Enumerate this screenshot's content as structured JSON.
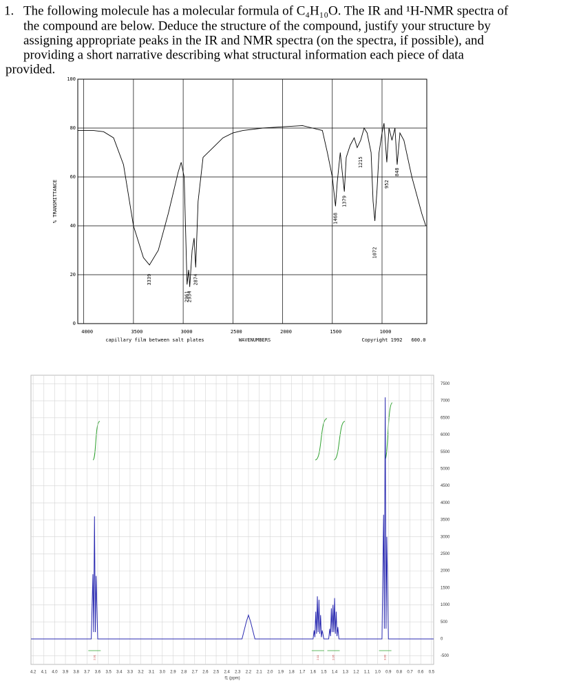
{
  "question": {
    "number": "1.",
    "lines": [
      "The following molecule has a molecular formula of C₄H₁₀O.  The IR and ¹H-NMR spectra of",
      "the compound are below.  Deduce the structure of the compound, justify your structure by",
      "assigning appropriate peaks in the IR and NMR spectra (on the spectra, if possible), and",
      "providing a short narrative describing what structural information each piece of data",
      "provided."
    ]
  },
  "chart_data": [
    {
      "type": "line",
      "y_label": "% TRANSMITTANCE",
      "x_label": "WAVENUMBERS",
      "note": "capillary film between salt plates",
      "copyright": "Copyright 1992",
      "end_label": "600.0",
      "color": "#000000",
      "grid": true,
      "xlim": [
        4060,
        550
      ],
      "ylim": [
        0,
        100
      ],
      "xticks": [
        4000,
        3500,
        3000,
        2500,
        2000,
        1500,
        1000
      ],
      "yticks": [
        0,
        20,
        40,
        60,
        80,
        100
      ],
      "x": [
        4060,
        3900,
        3800,
        3700,
        3600,
        3500,
        3400,
        3339,
        3250,
        3150,
        3050,
        3020,
        2990,
        2961,
        2945,
        2934,
        2910,
        2890,
        2874,
        2850,
        2800,
        2700,
        2600,
        2500,
        2400,
        2200,
        2000,
        1800,
        1700,
        1600,
        1550,
        1500,
        1468,
        1450,
        1420,
        1400,
        1379,
        1360,
        1320,
        1280,
        1250,
        1215,
        1180,
        1150,
        1110,
        1090,
        1072,
        1050,
        1030,
        1000,
        980,
        952,
        930,
        900,
        870,
        848,
        820,
        780,
        700,
        600,
        560
      ],
      "values": [
        79,
        79,
        78.5,
        76,
        65,
        40,
        27,
        24,
        30,
        45,
        62,
        66,
        60,
        16,
        22,
        15,
        30,
        35,
        23,
        50,
        68,
        72,
        76,
        78,
        79,
        80,
        80.5,
        81,
        80,
        79,
        70,
        60,
        48,
        58,
        70,
        62,
        54,
        68,
        73,
        76,
        72,
        75,
        80,
        78,
        70,
        50,
        42,
        55,
        70,
        78,
        82,
        66,
        80,
        75,
        80,
        65,
        78,
        75,
        60,
        45,
        40
      ],
      "annotations": [
        {
          "label": "3339",
          "x": 3339,
          "y": 18
        },
        {
          "label": "2961",
          "x": 2961,
          "y": 11
        },
        {
          "label": "2934",
          "x": 2934,
          "y": 11
        },
        {
          "label": "2874",
          "x": 2874,
          "y": 18
        },
        {
          "label": "1468",
          "x": 1468,
          "y": 43
        },
        {
          "label": "1379",
          "x": 1379,
          "y": 50
        },
        {
          "label": "1215",
          "x": 1215,
          "y": 66
        },
        {
          "label": "1072",
          "x": 1072,
          "y": 29
        },
        {
          "label": "952",
          "x": 952,
          "y": 57
        },
        {
          "label": "848",
          "x": 848,
          "y": 62
        }
      ]
    },
    {
      "type": "line",
      "x_label": "f1 (ppm)",
      "color": "#2a2ab0",
      "grid": true,
      "xlim": [
        4.22,
        0.48
      ],
      "ylim": [
        -750,
        7750
      ],
      "xticks": [
        4.2,
        4.1,
        {
          "value": 4,
          "label": "4.0"
        },
        3.9,
        3.8,
        3.7,
        3.6,
        3.5,
        3.4,
        3.3,
        3.2,
        3.1,
        {
          "value": 3,
          "label": "3.0"
        },
        2.9,
        2.8,
        2.7,
        2.6,
        2.5,
        2.4,
        2.3,
        2.2,
        2.1,
        {
          "value": 2,
          "label": "2.0"
        },
        1.9,
        1.8,
        1.7,
        1.6,
        1.5,
        1.4,
        1.3,
        1.2,
        1.1,
        {
          "value": 1,
          "label": "1.0"
        },
        0.9,
        0.8,
        0.7,
        0.6,
        0.5
      ],
      "yticks": [
        -500,
        0,
        500,
        1000,
        1500,
        2000,
        2500,
        3000,
        3500,
        4000,
        4500,
        5000,
        5500,
        6000,
        6500,
        7000,
        7500
      ],
      "x": [
        4.22,
        3.66,
        3.645,
        3.638,
        3.63,
        3.622,
        3.615,
        3.6,
        2.26,
        2.22,
        2.2,
        2.18,
        2.14,
        1.6,
        1.59,
        1.583,
        1.575,
        1.568,
        1.56,
        1.553,
        1.545,
        1.538,
        1.53,
        1.523,
        1.515,
        1.5,
        1.455,
        1.445,
        1.438,
        1.43,
        1.423,
        1.415,
        1.408,
        1.4,
        1.393,
        1.385,
        1.378,
        1.37,
        1.36,
        0.96,
        0.945,
        0.938,
        0.93,
        0.922,
        0.915,
        0.9,
        0.48
      ],
      "values": [
        0,
        0,
        1900,
        200,
        3600,
        200,
        1850,
        0,
        0,
        500,
        700,
        500,
        0,
        0,
        250,
        50,
        800,
        150,
        1250,
        200,
        1150,
        150,
        700,
        50,
        250,
        0,
        0,
        300,
        80,
        900,
        200,
        1000,
        200,
        1200,
        150,
        800,
        80,
        350,
        0,
        0,
        3650,
        300,
        7100,
        300,
        3000,
        0,
        0
      ],
      "integrals": [
        {
          "label": "2.01",
          "x": 3.63
        },
        {
          "label": "2.11",
          "x": 1.555
        },
        {
          "label": "2.05",
          "x": 1.41
        },
        {
          "label": "3.00",
          "x": 0.93
        }
      ]
    }
  ]
}
